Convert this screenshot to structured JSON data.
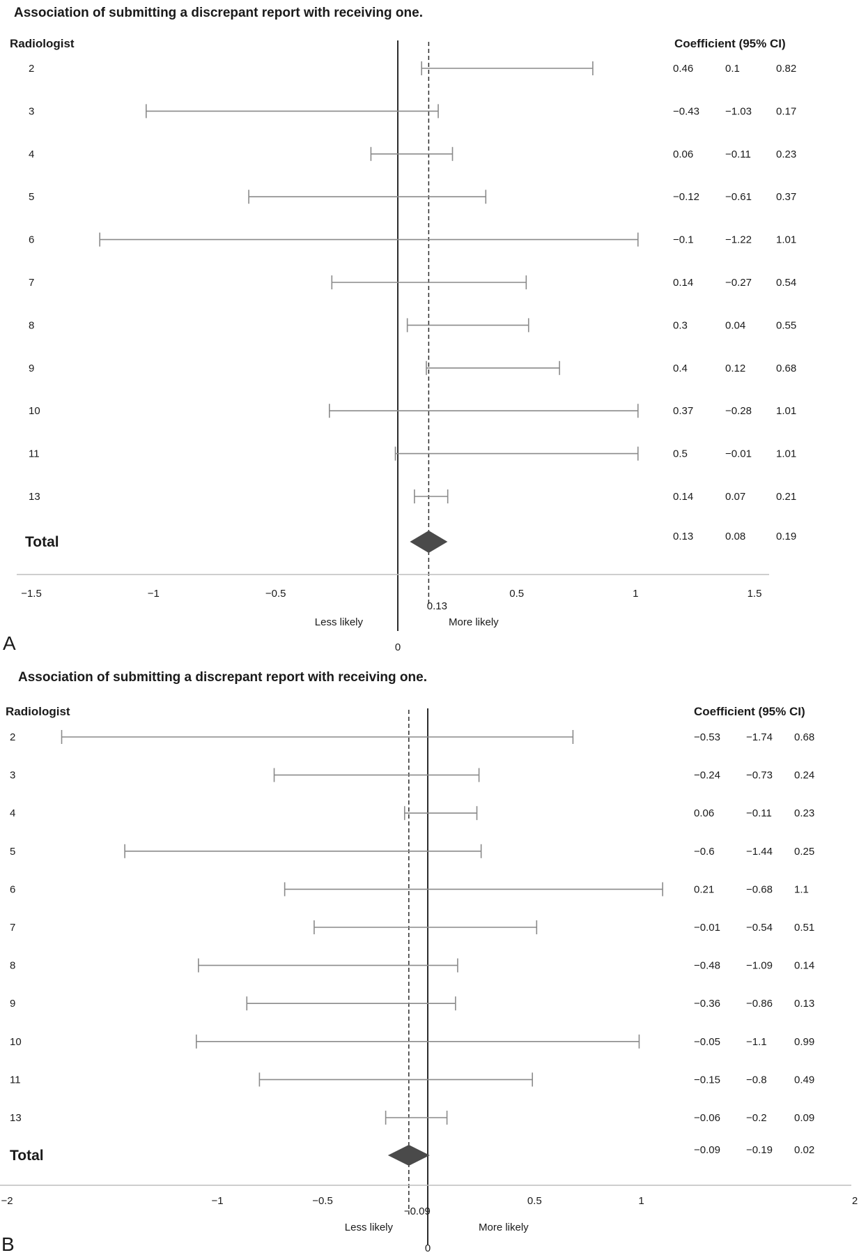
{
  "chart_data": [
    {
      "type": "forest",
      "panel_label": "A",
      "title": "Association of submitting a discrepant report with receiving one.",
      "row_header": "Radiologist",
      "table_header": "Coefficient (95% CI)",
      "xlim": [
        -1.5,
        1.5
      ],
      "x_ticks": [
        "-1.5",
        "-1",
        "-0.5",
        "0",
        "0.5",
        "1",
        "1.5"
      ],
      "x_tick_values": [
        -1.5,
        -1,
        -0.5,
        0,
        0.5,
        1,
        1.5
      ],
      "rows": [
        {
          "label": "2",
          "coef": "0.46",
          "lower": "0.1",
          "upper": "0.82"
        },
        {
          "label": "3",
          "coef": "-0.43",
          "lower": "-1.03",
          "upper": "0.17"
        },
        {
          "label": "4",
          "coef": "0.06",
          "lower": "-0.11",
          "upper": "0.23"
        },
        {
          "label": "5",
          "coef": "-0.12",
          "lower": "-0.61",
          "upper": "0.37"
        },
        {
          "label": "6",
          "coef": "-0.1",
          "lower": "-1.22",
          "upper": "1.01"
        },
        {
          "label": "7",
          "coef": "0.14",
          "lower": "-0.27",
          "upper": "0.54"
        },
        {
          "label": "8",
          "coef": "0.3",
          "lower": "0.04",
          "upper": "0.55"
        },
        {
          "label": "9",
          "coef": "0.4",
          "lower": "0.12",
          "upper": "0.68"
        },
        {
          "label": "10",
          "coef": "0.37",
          "lower": "-0.28",
          "upper": "1.01"
        },
        {
          "label": "11",
          "coef": "0.5",
          "lower": "-0.01",
          "upper": "1.01"
        },
        {
          "label": "13",
          "coef": "0.14",
          "lower": "0.07",
          "upper": "0.21"
        }
      ],
      "total": {
        "label": "Total",
        "coef": "0.13",
        "lower": "0.08",
        "upper": "0.19"
      },
      "pooled_label": "0.13",
      "left_note": "Less likely",
      "right_note": "More likely"
    },
    {
      "type": "forest",
      "panel_label": "B",
      "title": "Association of submitting a discrepant report with receiving one.",
      "row_header": "Radiologist",
      "table_header": "Coefficient (95% CI)",
      "xlim": [
        -2,
        2
      ],
      "x_ticks": [
        "-2",
        "-1",
        "-0.5",
        "0",
        "0.5",
        "1",
        "2"
      ],
      "x_tick_values": [
        -2,
        -1,
        -0.5,
        0,
        0.5,
        1,
        2
      ],
      "rows": [
        {
          "label": "2",
          "coef": "-0.53",
          "lower": "-1.74",
          "upper": "0.68"
        },
        {
          "label": "3",
          "coef": "-0.24",
          "lower": "-0.73",
          "upper": "0.24"
        },
        {
          "label": "4",
          "coef": "0.06",
          "lower": "-0.11",
          "upper": "0.23"
        },
        {
          "label": "5",
          "coef": "-0.6",
          "lower": "-1.44",
          "upper": "0.25"
        },
        {
          "label": "6",
          "coef": "0.21",
          "lower": "-0.68",
          "upper": "1.1"
        },
        {
          "label": "7",
          "coef": "-0.01",
          "lower": "-0.54",
          "upper": "0.51"
        },
        {
          "label": "8",
          "coef": "-0.48",
          "lower": "-1.09",
          "upper": "0.14"
        },
        {
          "label": "9",
          "coef": "-0.36",
          "lower": "-0.86",
          "upper": "0.13"
        },
        {
          "label": "10",
          "coef": "-0.05",
          "lower": "-1.1",
          "upper": "0.99"
        },
        {
          "label": "11",
          "coef": "-0.15",
          "lower": "-0.8",
          "upper": "0.49"
        },
        {
          "label": "13",
          "coef": "-0.06",
          "lower": "-0.2",
          "upper": "0.09"
        }
      ],
      "total": {
        "label": "Total",
        "coef": "-0.09",
        "lower": "-0.19",
        "upper": "0.02"
      },
      "pooled_label": "-0.09",
      "left_note": "Less likely",
      "right_note": "More likely"
    }
  ]
}
